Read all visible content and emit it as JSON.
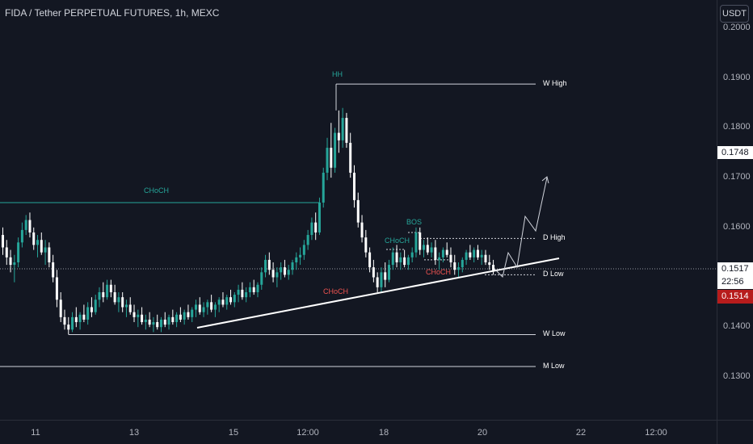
{
  "header": {
    "title": "FIDA / Tether PERPETUAL FUTURES, 1h, MEXC",
    "currency": "USDT"
  },
  "chart_data": {
    "type": "candlestick",
    "ylim": [
      0.1285,
      0.2015
    ],
    "y_ticks": [
      "0.2000",
      "0.1900",
      "0.1800",
      "0.1700",
      "0.1600",
      "0.1500",
      "0.1400",
      "0.1300"
    ],
    "x_ticks": [
      "11",
      "13",
      "15",
      "12:00",
      "18",
      "20",
      "22",
      "12:00"
    ],
    "price_labels": {
      "hover": "0.1748",
      "current": "0.1517",
      "countdown": "22:56",
      "last": "0.1514"
    },
    "colors": {
      "up": "#26a69a",
      "down": "#ffffff",
      "background": "#131722",
      "bullish_label": "#26a69a",
      "bearish_label": "#ef5350",
      "last_bg": "#b71c1c"
    },
    "levels": [
      {
        "name": "W High",
        "price": 0.1888
      },
      {
        "name": "D High",
        "price": 0.1578
      },
      {
        "name": "D Low",
        "price": 0.1505
      },
      {
        "name": "W Low",
        "price": 0.1385
      },
      {
        "name": "M Low",
        "price": 0.1321
      }
    ],
    "choch_level": 0.165,
    "annotations": [
      {
        "text": "HH",
        "color": "bullish"
      },
      {
        "text": "CHoCH",
        "color": "bullish"
      },
      {
        "text": "BOS",
        "color": "bullish"
      },
      {
        "text": "CHoCH",
        "color": "bullish"
      },
      {
        "text": "CHoCH",
        "color": "bearish"
      },
      {
        "text": "CHoCH",
        "color": "bearish"
      }
    ],
    "ohlc": [
      [
        0.1585,
        0.16,
        0.1545,
        0.156
      ],
      [
        0.156,
        0.1575,
        0.1525,
        0.154
      ],
      [
        0.154,
        0.1555,
        0.151,
        0.1525
      ],
      [
        0.1525,
        0.1545,
        0.149,
        0.153
      ],
      [
        0.153,
        0.158,
        0.152,
        0.157
      ],
      [
        0.157,
        0.161,
        0.156,
        0.1595
      ],
      [
        0.1595,
        0.1625,
        0.1585,
        0.1615
      ],
      [
        0.1615,
        0.163,
        0.158,
        0.159
      ],
      [
        0.159,
        0.16,
        0.1555,
        0.1565
      ],
      [
        0.1565,
        0.1585,
        0.154,
        0.1575
      ],
      [
        0.1575,
        0.159,
        0.1545,
        0.155
      ],
      [
        0.155,
        0.1575,
        0.1525,
        0.156
      ],
      [
        0.156,
        0.157,
        0.152,
        0.153
      ],
      [
        0.153,
        0.1545,
        0.149,
        0.15
      ],
      [
        0.15,
        0.1515,
        0.144,
        0.1455
      ],
      [
        0.1455,
        0.147,
        0.141,
        0.142
      ],
      [
        0.142,
        0.1435,
        0.1395,
        0.1405
      ],
      [
        0.1405,
        0.142,
        0.1385,
        0.1395
      ],
      [
        0.1395,
        0.143,
        0.139,
        0.142
      ],
      [
        0.142,
        0.144,
        0.14,
        0.141
      ],
      [
        0.141,
        0.143,
        0.1395,
        0.1425
      ],
      [
        0.1425,
        0.1445,
        0.141,
        0.1415
      ],
      [
        0.1415,
        0.145,
        0.1405,
        0.144
      ],
      [
        0.144,
        0.146,
        0.142,
        0.143
      ],
      [
        0.143,
        0.1465,
        0.1425,
        0.1455
      ],
      [
        0.1455,
        0.148,
        0.144,
        0.147
      ],
      [
        0.147,
        0.149,
        0.145,
        0.146
      ],
      [
        0.146,
        0.1495,
        0.1455,
        0.1485
      ],
      [
        0.1485,
        0.1495,
        0.146,
        0.147
      ],
      [
        0.147,
        0.1485,
        0.1445,
        0.145
      ],
      [
        0.145,
        0.147,
        0.143,
        0.146
      ],
      [
        0.146,
        0.147,
        0.143,
        0.144
      ],
      [
        0.144,
        0.1455,
        0.142,
        0.1445
      ],
      [
        0.1445,
        0.146,
        0.1425,
        0.143
      ],
      [
        0.143,
        0.1445,
        0.141,
        0.142
      ],
      [
        0.142,
        0.1435,
        0.14,
        0.1425
      ],
      [
        0.1425,
        0.144,
        0.1405,
        0.141
      ],
      [
        0.141,
        0.1425,
        0.1395,
        0.1415
      ],
      [
        0.1415,
        0.143,
        0.14,
        0.1405
      ],
      [
        0.1405,
        0.142,
        0.139,
        0.141
      ],
      [
        0.141,
        0.1425,
        0.1395,
        0.14
      ],
      [
        0.14,
        0.142,
        0.139,
        0.1415
      ],
      [
        0.1415,
        0.143,
        0.14,
        0.1405
      ],
      [
        0.1405,
        0.1425,
        0.1395,
        0.142
      ],
      [
        0.142,
        0.1435,
        0.1405,
        0.141
      ],
      [
        0.141,
        0.143,
        0.14,
        0.1425
      ],
      [
        0.1425,
        0.144,
        0.141,
        0.1415
      ],
      [
        0.1415,
        0.1435,
        0.1405,
        0.143
      ],
      [
        0.143,
        0.1445,
        0.1415,
        0.142
      ],
      [
        0.142,
        0.144,
        0.141,
        0.1435
      ],
      [
        0.1435,
        0.1455,
        0.142,
        0.1445
      ],
      [
        0.1445,
        0.146,
        0.1425,
        0.143
      ],
      [
        0.143,
        0.145,
        0.142,
        0.144
      ],
      [
        0.144,
        0.1455,
        0.1425,
        0.145
      ],
      [
        0.145,
        0.1465,
        0.143,
        0.1435
      ],
      [
        0.1435,
        0.145,
        0.142,
        0.1445
      ],
      [
        0.1445,
        0.146,
        0.143,
        0.1455
      ],
      [
        0.1455,
        0.147,
        0.144,
        0.1445
      ],
      [
        0.1445,
        0.1465,
        0.1435,
        0.146
      ],
      [
        0.146,
        0.1475,
        0.1445,
        0.145
      ],
      [
        0.145,
        0.147,
        0.144,
        0.1465
      ],
      [
        0.1465,
        0.1485,
        0.145,
        0.1475
      ],
      [
        0.1475,
        0.149,
        0.1455,
        0.146
      ],
      [
        0.146,
        0.148,
        0.145,
        0.147
      ],
      [
        0.147,
        0.149,
        0.146,
        0.148
      ],
      [
        0.148,
        0.1495,
        0.1465,
        0.147
      ],
      [
        0.147,
        0.149,
        0.146,
        0.1485
      ],
      [
        0.1485,
        0.152,
        0.1475,
        0.151
      ],
      [
        0.151,
        0.1545,
        0.15,
        0.1535
      ],
      [
        0.1535,
        0.155,
        0.1505,
        0.1515
      ],
      [
        0.1515,
        0.153,
        0.149,
        0.15
      ],
      [
        0.15,
        0.152,
        0.148,
        0.151
      ],
      [
        0.151,
        0.153,
        0.1495,
        0.152
      ],
      [
        0.152,
        0.1535,
        0.15,
        0.1505
      ],
      [
        0.1505,
        0.1525,
        0.1495,
        0.1515
      ],
      [
        0.1515,
        0.1535,
        0.1505,
        0.153
      ],
      [
        0.153,
        0.155,
        0.1515,
        0.154
      ],
      [
        0.154,
        0.156,
        0.1525,
        0.1545
      ],
      [
        0.1545,
        0.1575,
        0.1535,
        0.1565
      ],
      [
        0.1565,
        0.1595,
        0.1555,
        0.1585
      ],
      [
        0.1585,
        0.162,
        0.1575,
        0.161
      ],
      [
        0.161,
        0.163,
        0.1575,
        0.159
      ],
      [
        0.159,
        0.166,
        0.1585,
        0.165
      ],
      [
        0.165,
        0.172,
        0.164,
        0.171
      ],
      [
        0.171,
        0.178,
        0.1695,
        0.176
      ],
      [
        0.176,
        0.181,
        0.17,
        0.172
      ],
      [
        0.172,
        0.18,
        0.171,
        0.179
      ],
      [
        0.179,
        0.1835,
        0.175,
        0.1775
      ],
      [
        0.1775,
        0.184,
        0.176,
        0.182
      ],
      [
        0.182,
        0.183,
        0.176,
        0.177
      ],
      [
        0.177,
        0.179,
        0.17,
        0.171
      ],
      [
        0.171,
        0.1725,
        0.164,
        0.1655
      ],
      [
        0.1655,
        0.167,
        0.16,
        0.161
      ],
      [
        0.161,
        0.1625,
        0.157,
        0.158
      ],
      [
        0.158,
        0.1595,
        0.154,
        0.155
      ],
      [
        0.155,
        0.156,
        0.151,
        0.152
      ],
      [
        0.152,
        0.1535,
        0.149,
        0.15
      ],
      [
        0.15,
        0.151,
        0.147,
        0.148
      ],
      [
        0.148,
        0.152,
        0.147,
        0.151
      ],
      [
        0.151,
        0.153,
        0.148,
        0.1495
      ],
      [
        0.1495,
        0.1535,
        0.149,
        0.1525
      ],
      [
        0.1525,
        0.156,
        0.1515,
        0.155
      ],
      [
        0.155,
        0.1565,
        0.152,
        0.153
      ],
      [
        0.153,
        0.155,
        0.1515,
        0.154
      ],
      [
        0.154,
        0.1555,
        0.152,
        0.1525
      ],
      [
        0.1525,
        0.1545,
        0.1515,
        0.154
      ],
      [
        0.154,
        0.156,
        0.153,
        0.155
      ],
      [
        0.155,
        0.16,
        0.154,
        0.159
      ],
      [
        0.159,
        0.16,
        0.1545,
        0.1555
      ],
      [
        0.1555,
        0.1575,
        0.154,
        0.1565
      ],
      [
        0.1565,
        0.158,
        0.1545,
        0.155
      ],
      [
        0.155,
        0.157,
        0.154,
        0.156
      ],
      [
        0.156,
        0.1575,
        0.1525,
        0.1535
      ],
      [
        0.1535,
        0.155,
        0.1515,
        0.154
      ],
      [
        0.154,
        0.156,
        0.153,
        0.1555
      ],
      [
        0.1555,
        0.157,
        0.154,
        0.1545
      ],
      [
        0.1545,
        0.156,
        0.152,
        0.153
      ],
      [
        0.153,
        0.1545,
        0.1505,
        0.1515
      ],
      [
        0.1515,
        0.153,
        0.15,
        0.152
      ],
      [
        0.152,
        0.154,
        0.151,
        0.1535
      ],
      [
        0.1535,
        0.1555,
        0.1525,
        0.155
      ],
      [
        0.155,
        0.1565,
        0.1535,
        0.154
      ],
      [
        0.154,
        0.156,
        0.153,
        0.1555
      ],
      [
        0.1555,
        0.1565,
        0.1535,
        0.154
      ],
      [
        0.154,
        0.1555,
        0.1525,
        0.1545
      ],
      [
        0.1545,
        0.1555,
        0.1525,
        0.153
      ],
      [
        0.153,
        0.1545,
        0.1515,
        0.1525
      ],
      [
        0.1525,
        0.1535,
        0.1505,
        0.1514
      ]
    ],
    "projection": [
      [
        0.1505,
        0.1505
      ],
      [
        0.151,
        0.155
      ],
      [
        0.153,
        0.153
      ],
      [
        0.1595,
        0.1615
      ],
      [
        0.1695,
        0.1705
      ]
    ]
  }
}
